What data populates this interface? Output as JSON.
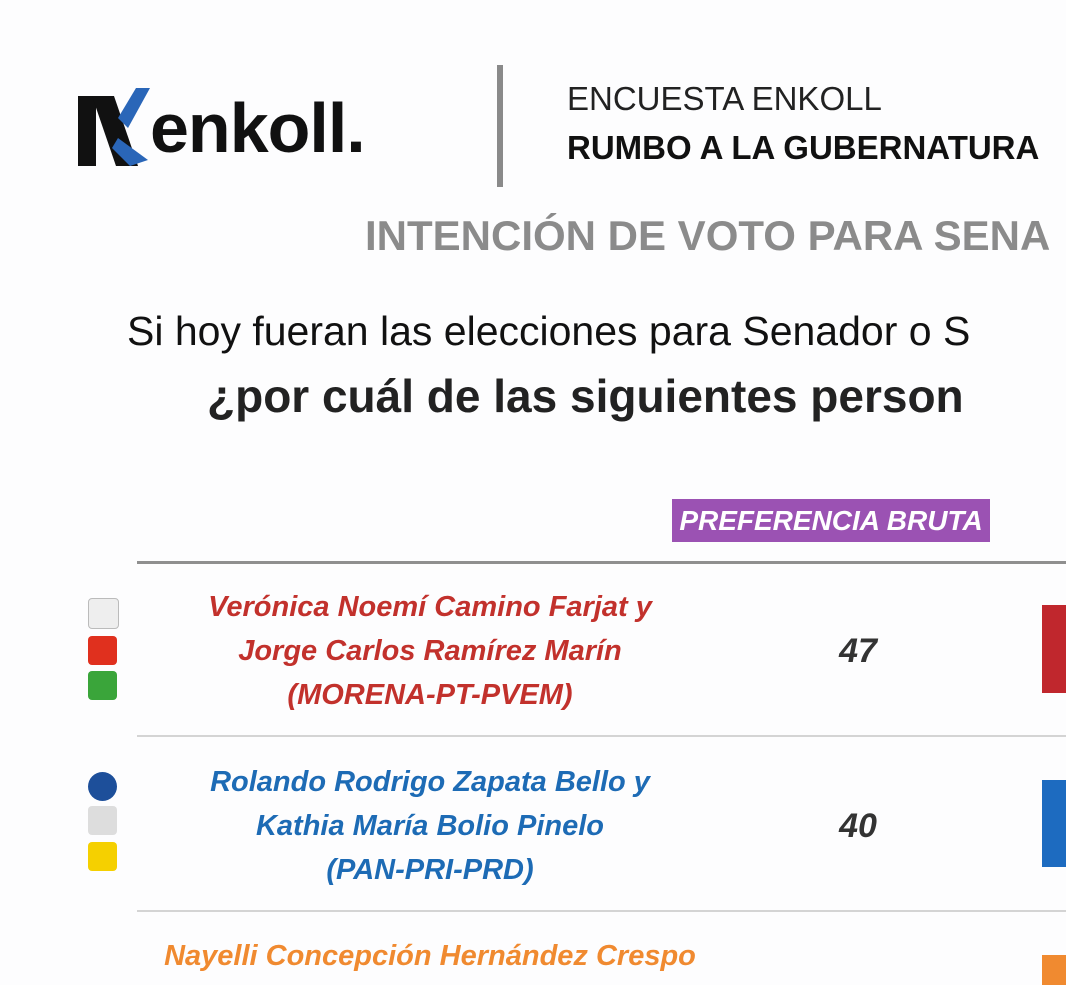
{
  "header": {
    "logo": "enkoll.",
    "kicker": "ENCUESTA ENKOLL",
    "title": "RUMBO A LA GUBERNATURA"
  },
  "heading": "INTENCIÓN DE VOTO PARA SENA",
  "question": [
    "Si hoy fueran las elecciones para Senador o S",
    "¿por cuál de las siguientes person"
  ],
  "table": {
    "column": "PREFERENCIA BRUTA",
    "rows": [
      {
        "candidates": [
          "Verónica Noemí Camino Farjat y",
          "Jorge Carlos Ramírez Marín",
          "(MORENA-PT-PVEM)"
        ],
        "value": 47
      },
      {
        "candidates": [
          "Rolando Rodrigo Zapata Bello y",
          "Kathia María Bolio Pinelo",
          "(PAN-PRI-PRD)"
        ],
        "value": 40
      },
      {
        "candidates": [
          "Nayelli Concepción Hernández Crespo"
        ]
      }
    ]
  }
}
